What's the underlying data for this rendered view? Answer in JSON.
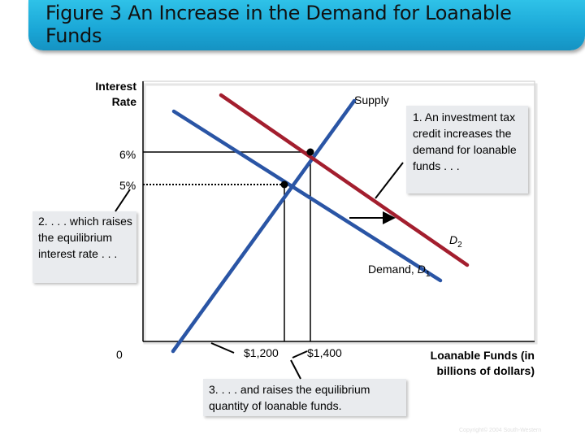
{
  "title": "Figure 3 An Increase in the Demand for Loanable Funds",
  "y_axis_label": "Interest Rate",
  "x_axis_label": "Loanable Funds (in billions of dollars)",
  "origin_label": "0",
  "callouts": {
    "investment": "1. An investment tax credit increases the demand for loanable funds . . .",
    "rate": "2. . . . which raises the equilibrium interest rate . . .",
    "quantity": "3. . . . and raises the equilibrium quantity of loanable funds."
  },
  "copyright": "Copyright© 2004  South-Western",
  "chart_data": {
    "type": "line",
    "xlabel": "Loanable Funds (in billions of dollars)",
    "ylabel": "Interest Rate",
    "x_ticks": [
      "$1,200",
      "$1,400"
    ],
    "y_ticks": [
      "5%",
      "6%"
    ],
    "series": [
      {
        "name": "Supply",
        "color": "#2a55a5",
        "values": [
          [
            850,
            3.0
          ],
          [
            1670,
            8.6
          ]
        ]
      },
      {
        "name": "Demand, D1",
        "subscript": "1",
        "color": "#2a55a5",
        "values": [
          [
            680,
            8.2
          ],
          [
            1930,
            1.3
          ]
        ]
      },
      {
        "name": "D2",
        "subscript": "2",
        "color": "#a31e2e",
        "values": [
          [
            1140,
            8.7
          ],
          [
            2180,
            1.8
          ]
        ]
      }
    ],
    "equilibria": [
      {
        "x": 1200,
        "y": 5,
        "x_label": "$1,200",
        "y_label": "5%"
      },
      {
        "x": 1400,
        "y": 6,
        "x_label": "$1,400",
        "y_label": "6%"
      }
    ]
  }
}
